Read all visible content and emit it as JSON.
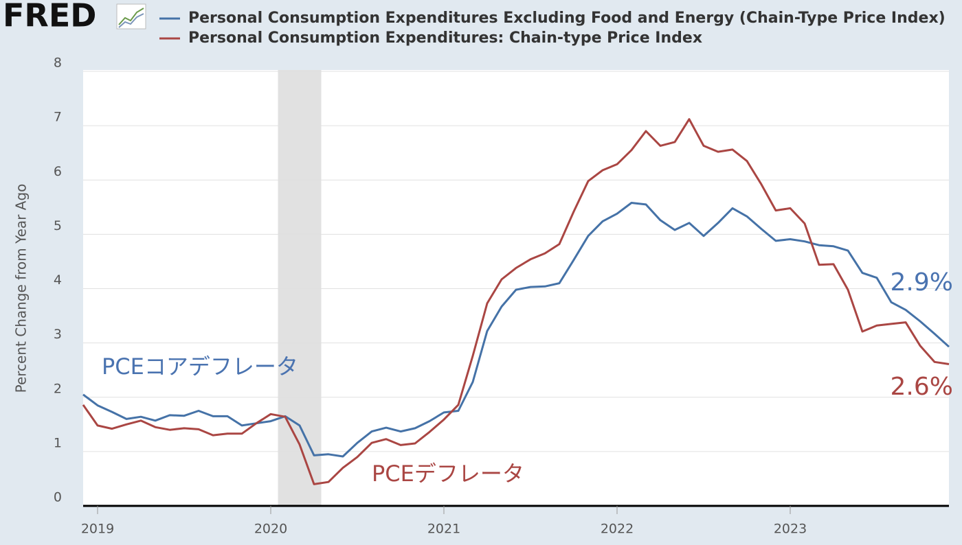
{
  "chart_data": {
    "type": "line",
    "logo": "FRED",
    "ylabel": "Percent Change from Year Ago",
    "x": [
      "2018-12",
      "2019-01",
      "2019-02",
      "2019-03",
      "2019-04",
      "2019-05",
      "2019-06",
      "2019-07",
      "2019-08",
      "2019-09",
      "2019-10",
      "2019-11",
      "2019-12",
      "2020-01",
      "2020-02",
      "2020-03",
      "2020-04",
      "2020-05",
      "2020-06",
      "2020-07",
      "2020-08",
      "2020-09",
      "2020-10",
      "2020-11",
      "2020-12",
      "2021-01",
      "2021-02",
      "2021-03",
      "2021-04",
      "2021-05",
      "2021-06",
      "2021-07",
      "2021-08",
      "2021-09",
      "2021-10",
      "2021-11",
      "2021-12",
      "2022-01",
      "2022-02",
      "2022-03",
      "2022-04",
      "2022-05",
      "2022-06",
      "2022-07",
      "2022-08",
      "2022-09",
      "2022-10",
      "2022-11",
      "2022-12",
      "2023-01",
      "2023-02",
      "2023-03",
      "2023-04",
      "2023-05",
      "2023-06",
      "2023-07",
      "2023-08",
      "2023-09",
      "2023-10",
      "2023-11",
      "2023-12"
    ],
    "series": [
      {
        "name": "Personal Consumption Expenditures Excluding Food and Energy (Chain-Type Price Index)",
        "color": "#4572a7",
        "values": [
          2.05,
          1.85,
          1.73,
          1.6,
          1.64,
          1.57,
          1.67,
          1.66,
          1.75,
          1.65,
          1.65,
          1.48,
          1.52,
          1.56,
          1.65,
          1.48,
          0.93,
          0.95,
          0.91,
          1.16,
          1.37,
          1.44,
          1.37,
          1.43,
          1.56,
          1.72,
          1.75,
          2.28,
          3.22,
          3.67,
          3.98,
          4.03,
          4.04,
          4.1,
          4.53,
          4.97,
          5.24,
          5.38,
          5.58,
          5.55,
          5.26,
          5.08,
          5.21,
          4.97,
          5.21,
          5.48,
          5.33,
          5.1,
          4.88,
          4.91,
          4.87,
          4.8,
          4.78,
          4.7,
          4.29,
          4.2,
          3.75,
          3.61,
          3.4,
          3.17,
          2.93
        ]
      },
      {
        "name": "Personal Consumption Expenditures: Chain-type Price Index",
        "color": "#aa4643",
        "values": [
          1.86,
          1.48,
          1.42,
          1.5,
          1.57,
          1.45,
          1.4,
          1.43,
          1.41,
          1.3,
          1.33,
          1.33,
          1.52,
          1.69,
          1.64,
          1.13,
          0.4,
          0.44,
          0.7,
          0.9,
          1.16,
          1.23,
          1.12,
          1.15,
          1.36,
          1.59,
          1.86,
          2.76,
          3.73,
          4.17,
          4.38,
          4.54,
          4.65,
          4.82,
          5.42,
          5.98,
          6.18,
          6.29,
          6.55,
          6.9,
          6.63,
          6.7,
          7.12,
          6.63,
          6.52,
          6.56,
          6.35,
          5.92,
          5.44,
          5.48,
          5.2,
          4.44,
          4.45,
          3.98,
          3.21,
          3.32,
          3.35,
          3.38,
          2.95,
          2.65,
          2.61
        ]
      }
    ],
    "xlim": [
      "2018-12",
      "2023-12"
    ],
    "xticks": [
      {
        "value": "2019-01",
        "label": "2019"
      },
      {
        "value": "2020-01",
        "label": "2020"
      },
      {
        "value": "2021-01",
        "label": "2021"
      },
      {
        "value": "2022-01",
        "label": "2022"
      },
      {
        "value": "2023-01",
        "label": "2023"
      }
    ],
    "ylim": [
      0,
      8
    ],
    "yticks": [
      0,
      1,
      2,
      3,
      4,
      5,
      6,
      7,
      8
    ],
    "grid": true,
    "recessions": [
      {
        "start": "2020-02",
        "end": "2020-04"
      }
    ],
    "annotations": [
      {
        "text": "PCEコアデフレータ",
        "color": "#4a73b0"
      },
      {
        "text": "PCEデフレータ",
        "color": "#aa4643"
      },
      {
        "text": "2.9%",
        "color": "#4a73b0"
      },
      {
        "text": "2.6%",
        "color": "#aa4643"
      }
    ]
  }
}
